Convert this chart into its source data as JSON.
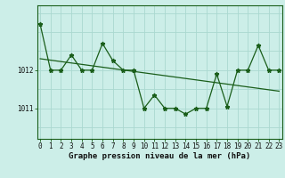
{
  "xlabel": "Graphe pression niveau de la mer (hPa)",
  "background_color": "#cceee8",
  "grid_color": "#aad8d0",
  "line_color": "#1a5e1a",
  "x_values": [
    0,
    1,
    2,
    3,
    4,
    5,
    6,
    7,
    8,
    9,
    10,
    11,
    12,
    13,
    14,
    15,
    16,
    17,
    18,
    19,
    20,
    21,
    22,
    23
  ],
  "y_values": [
    1013.2,
    1012.0,
    1012.0,
    1012.4,
    1012.0,
    1012.0,
    1012.7,
    1012.25,
    1012.0,
    1012.0,
    1011.0,
    1011.35,
    1011.0,
    1011.0,
    1010.85,
    1011.0,
    1011.0,
    1011.9,
    1011.05,
    1012.0,
    1012.0,
    1012.65,
    1012.0,
    1012.0
  ],
  "trend_x": [
    0,
    23
  ],
  "trend_y": [
    1012.3,
    1011.45
  ],
  "ytick_positions": [
    1011,
    1012
  ],
  "ytick_labels": [
    "1011",
    "1012"
  ],
  "xticks": [
    0,
    1,
    2,
    3,
    4,
    5,
    6,
    7,
    8,
    9,
    10,
    11,
    12,
    13,
    14,
    15,
    16,
    17,
    18,
    19,
    20,
    21,
    22,
    23
  ],
  "ylim": [
    1010.2,
    1013.7
  ],
  "xlim": [
    -0.3,
    23.3
  ],
  "tick_fontsize": 5.5,
  "xlabel_fontsize": 6.5
}
